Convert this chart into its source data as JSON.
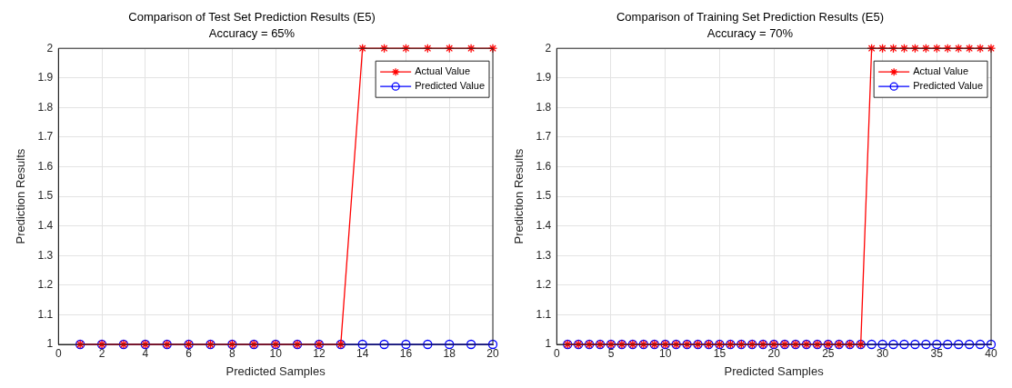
{
  "chart_data": [
    {
      "type": "line",
      "title": "Comparison of Test Set Prediction Results (E5)",
      "subtitle": "Accuracy = 65%",
      "xlabel": "Predicted Samples",
      "ylabel": "Prediction Results",
      "xlim": [
        0,
        20
      ],
      "xticks": [
        0,
        2,
        4,
        6,
        8,
        10,
        12,
        14,
        16,
        18,
        20
      ],
      "ylim": [
        1,
        2
      ],
      "yticks": [
        1,
        1.1,
        1.2,
        1.3,
        1.4,
        1.5,
        1.6,
        1.7,
        1.8,
        1.9,
        2
      ],
      "grid": true,
      "legend": "top right",
      "line_style": "solid",
      "series": [
        {
          "name": "Actual Value",
          "color": "#ff0000",
          "marker": "cross",
          "x": [
            1,
            2,
            3,
            4,
            5,
            6,
            7,
            8,
            9,
            10,
            11,
            12,
            13,
            14,
            15,
            16,
            17,
            18,
            19,
            20
          ],
          "values": [
            1,
            1,
            1,
            1,
            1,
            1,
            1,
            1,
            1,
            1,
            1,
            1,
            1,
            2,
            2,
            2,
            2,
            2,
            2,
            2
          ]
        },
        {
          "name": "Predicted Value",
          "color": "#0000ff",
          "marker": "circle",
          "x": [
            1,
            2,
            3,
            4,
            5,
            6,
            7,
            8,
            9,
            10,
            11,
            12,
            13,
            14,
            15,
            16,
            17,
            18,
            19,
            20
          ],
          "values": [
            1,
            1,
            1,
            1,
            1,
            1,
            1,
            1,
            1,
            1,
            1,
            1,
            1,
            1,
            1,
            1,
            1,
            1,
            1,
            1
          ]
        }
      ]
    },
    {
      "type": "line",
      "title": "Comparison of Training Set Prediction Results (E5)",
      "subtitle": "Accuracy = 70%",
      "xlabel": "Predicted Samples",
      "ylabel": "Prediction Results",
      "xlim": [
        0,
        40
      ],
      "xticks": [
        0,
        5,
        10,
        15,
        20,
        25,
        30,
        35,
        40
      ],
      "ylim": [
        1,
        2
      ],
      "yticks": [
        1,
        1.1,
        1.2,
        1.3,
        1.4,
        1.5,
        1.6,
        1.7,
        1.8,
        1.9,
        2
      ],
      "grid": true,
      "legend": "top right",
      "line_style": "solid",
      "series": [
        {
          "name": "Actual Value",
          "color": "#ff0000",
          "marker": "cross",
          "x": [
            1,
            2,
            3,
            4,
            5,
            6,
            7,
            8,
            9,
            10,
            11,
            12,
            13,
            14,
            15,
            16,
            17,
            18,
            19,
            20,
            21,
            22,
            23,
            24,
            25,
            26,
            27,
            28,
            29,
            30,
            31,
            32,
            33,
            34,
            35,
            36,
            37,
            38,
            39,
            40
          ],
          "values": [
            1,
            1,
            1,
            1,
            1,
            1,
            1,
            1,
            1,
            1,
            1,
            1,
            1,
            1,
            1,
            1,
            1,
            1,
            1,
            1,
            1,
            1,
            1,
            1,
            1,
            1,
            1,
            1,
            2,
            2,
            2,
            2,
            2,
            2,
            2,
            2,
            2,
            2,
            2,
            2
          ]
        },
        {
          "name": "Predicted Value",
          "color": "#0000ff",
          "marker": "circle",
          "x": [
            1,
            2,
            3,
            4,
            5,
            6,
            7,
            8,
            9,
            10,
            11,
            12,
            13,
            14,
            15,
            16,
            17,
            18,
            19,
            20,
            21,
            22,
            23,
            24,
            25,
            26,
            27,
            28,
            29,
            30,
            31,
            32,
            33,
            34,
            35,
            36,
            37,
            38,
            39,
            40
          ],
          "values": [
            1,
            1,
            1,
            1,
            1,
            1,
            1,
            1,
            1,
            1,
            1,
            1,
            1,
            1,
            1,
            1,
            1,
            1,
            1,
            1,
            1,
            1,
            1,
            1,
            1,
            1,
            1,
            1,
            1,
            1,
            1,
            1,
            1,
            1,
            1,
            1,
            1,
            1,
            1,
            1
          ]
        }
      ]
    }
  ]
}
